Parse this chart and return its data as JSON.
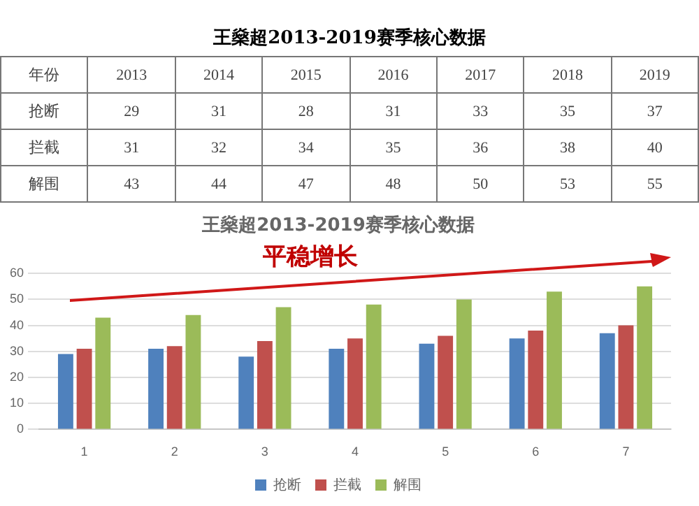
{
  "chart_data": [
    {
      "type": "heatmap",
      "title": "王燊超2013-2019赛季核心数据",
      "xlabel": "年份",
      "categories": [
        "2013",
        "2014",
        "2015",
        "2016",
        "2017",
        "2018",
        "2019"
      ],
      "y_categories": [
        "抢断",
        "拦截",
        "解围"
      ],
      "data_labels": true,
      "cells": [
        [
          29,
          31,
          28,
          31,
          33,
          35,
          37
        ],
        [
          31,
          32,
          34,
          35,
          36,
          38,
          40
        ],
        [
          43,
          44,
          47,
          48,
          50,
          53,
          55
        ]
      ]
    },
    {
      "type": "bar",
      "title": "王燊超2013-2019赛季核心数据",
      "annotations": [
        "平稳增长"
      ],
      "categories": [
        "1",
        "2",
        "3",
        "4",
        "5",
        "6",
        "7"
      ],
      "ylim": [
        0,
        60
      ],
      "yticks": [
        0,
        10,
        20,
        30,
        40,
        50,
        60
      ],
      "grid": "y",
      "legend": "bottom",
      "series": [
        {
          "name": "抢断",
          "color": "#4f81bd",
          "values": [
            29,
            31,
            28,
            31,
            33,
            35,
            37
          ]
        },
        {
          "name": "拦截",
          "color": "#c0504d",
          "values": [
            31,
            32,
            34,
            35,
            36,
            38,
            40
          ]
        },
        {
          "name": "解围",
          "color": "#9bbb59",
          "values": [
            43,
            44,
            47,
            48,
            50,
            53,
            55
          ]
        }
      ]
    }
  ]
}
